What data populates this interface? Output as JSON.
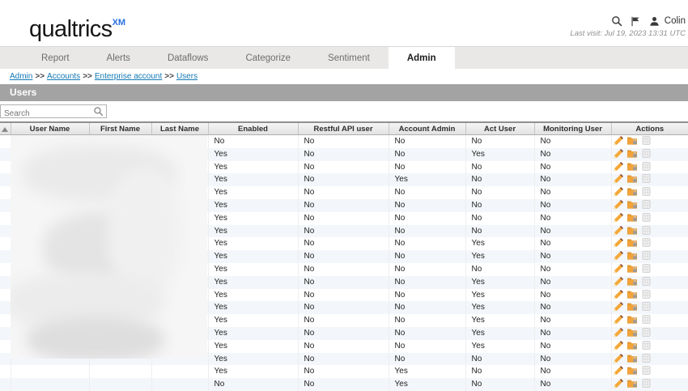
{
  "topbar": {
    "logo": "qualtrics",
    "logo_superscript": "XM",
    "username": "Colin",
    "last_visit": "Last visit: Jul 19, 2023 13:31 UTC",
    "icons": [
      "search-icon",
      "flag-icon",
      "person-icon"
    ]
  },
  "tabs": [
    {
      "label": "Report",
      "active": false
    },
    {
      "label": "Alerts",
      "active": false
    },
    {
      "label": "Dataflows",
      "active": false
    },
    {
      "label": "Categorize",
      "active": false
    },
    {
      "label": "Sentiment",
      "active": false
    },
    {
      "label": "Admin",
      "active": true
    }
  ],
  "breadcrumb": {
    "separator": ">>",
    "items": [
      "Admin",
      "Accounts",
      "Enterprise account",
      "Users"
    ]
  },
  "section": {
    "title": "Users"
  },
  "search": {
    "placeholder": "Search",
    "icon": "magnifier-icon"
  },
  "table": {
    "columns": [
      "",
      "User Name",
      "First Name",
      "Last Name",
      "Enabled",
      "Restful API user",
      "Account Admin",
      "Act User",
      "Monitoring User",
      "Actions"
    ],
    "sort_indicator": "ascending",
    "action_icons": [
      "edit-pencil-icon",
      "folder-lock-icon",
      "grid-icon"
    ],
    "rows": [
      {
        "enabled": "No",
        "restful_api_user": "No",
        "account_admin": "No",
        "act_user": "No",
        "monitoring_user": "No"
      },
      {
        "enabled": "Yes",
        "restful_api_user": "No",
        "account_admin": "No",
        "act_user": "Yes",
        "monitoring_user": "No"
      },
      {
        "enabled": "Yes",
        "restful_api_user": "No",
        "account_admin": "No",
        "act_user": "No",
        "monitoring_user": "No"
      },
      {
        "enabled": "Yes",
        "restful_api_user": "No",
        "account_admin": "Yes",
        "act_user": "No",
        "monitoring_user": "No"
      },
      {
        "enabled": "Yes",
        "restful_api_user": "No",
        "account_admin": "No",
        "act_user": "No",
        "monitoring_user": "No"
      },
      {
        "enabled": "Yes",
        "restful_api_user": "No",
        "account_admin": "No",
        "act_user": "No",
        "monitoring_user": "No"
      },
      {
        "enabled": "Yes",
        "restful_api_user": "No",
        "account_admin": "No",
        "act_user": "No",
        "monitoring_user": "No"
      },
      {
        "enabled": "Yes",
        "restful_api_user": "No",
        "account_admin": "No",
        "act_user": "No",
        "monitoring_user": "No"
      },
      {
        "enabled": "Yes",
        "restful_api_user": "No",
        "account_admin": "No",
        "act_user": "Yes",
        "monitoring_user": "No"
      },
      {
        "enabled": "Yes",
        "restful_api_user": "No",
        "account_admin": "No",
        "act_user": "Yes",
        "monitoring_user": "No"
      },
      {
        "enabled": "Yes",
        "restful_api_user": "No",
        "account_admin": "No",
        "act_user": "No",
        "monitoring_user": "No"
      },
      {
        "enabled": "Yes",
        "restful_api_user": "No",
        "account_admin": "No",
        "act_user": "Yes",
        "monitoring_user": "No"
      },
      {
        "enabled": "Yes",
        "restful_api_user": "No",
        "account_admin": "No",
        "act_user": "Yes",
        "monitoring_user": "No"
      },
      {
        "enabled": "Yes",
        "restful_api_user": "No",
        "account_admin": "No",
        "act_user": "Yes",
        "monitoring_user": "No"
      },
      {
        "enabled": "Yes",
        "restful_api_user": "No",
        "account_admin": "No",
        "act_user": "Yes",
        "monitoring_user": "No"
      },
      {
        "enabled": "Yes",
        "restful_api_user": "No",
        "account_admin": "No",
        "act_user": "Yes",
        "monitoring_user": "No"
      },
      {
        "enabled": "Yes",
        "restful_api_user": "No",
        "account_admin": "No",
        "act_user": "Yes",
        "monitoring_user": "No"
      },
      {
        "enabled": "Yes",
        "restful_api_user": "No",
        "account_admin": "No",
        "act_user": "No",
        "monitoring_user": "No"
      },
      {
        "enabled": "Yes",
        "restful_api_user": "No",
        "account_admin": "Yes",
        "act_user": "No",
        "monitoring_user": "No"
      },
      {
        "enabled": "No",
        "restful_api_user": "No",
        "account_admin": "Yes",
        "act_user": "No",
        "monitoring_user": "No"
      }
    ]
  },
  "colors": {
    "logo_xm_blue": "#2b6fe4",
    "breadcrumb_link": "#1279b5",
    "section_bar_gray": "#a3a3a3",
    "row_stripe": "#f3f6fa",
    "action_orange": "#f2a43b",
    "tab_bar_gray": "#e9e8e6"
  }
}
